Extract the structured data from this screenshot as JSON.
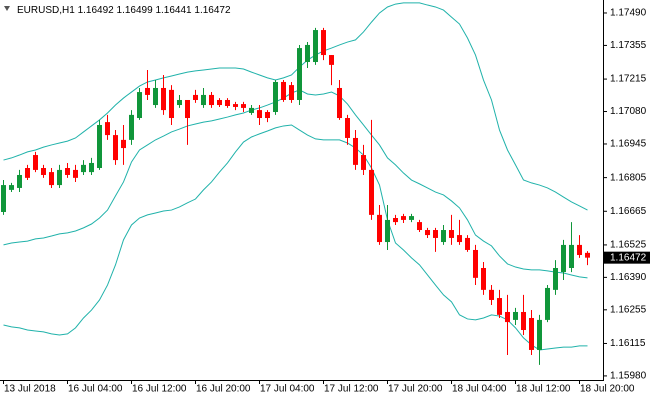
{
  "chart_data": {
    "type": "candlestick",
    "symbol": "EURUSD,H1",
    "ohlc": [
      1.16492,
      1.16499,
      1.16441,
      1.16472
    ],
    "last_price": 1.16472,
    "categories": [
      "13 Jul 2018",
      null,
      null,
      null,
      null,
      null,
      null,
      null,
      "16 Jul 04:00",
      null,
      null,
      null,
      null,
      null,
      null,
      null,
      "16 Jul 12:00",
      null,
      null,
      null,
      null,
      null,
      null,
      null,
      "16 Jul 20:00",
      null,
      null,
      null,
      null,
      null,
      null,
      null,
      "17 Jul 04:00",
      null,
      null,
      null,
      null,
      null,
      null,
      null,
      "17 Jul 12:00",
      null,
      null,
      null,
      null,
      null,
      null,
      null,
      "17 Jul 20:00",
      null,
      null,
      null,
      null,
      null,
      null,
      null,
      "18 Jul 04:00",
      null,
      null,
      null,
      null,
      null,
      null,
      null,
      "18 Jul 12:00",
      null,
      null,
      null,
      null,
      null,
      null,
      null,
      "18 Jul 20:00",
      null
    ],
    "open": [
      1.16662,
      1.16754,
      1.16762,
      1.16845,
      1.16899,
      1.16845,
      1.16828,
      1.16774,
      1.16845,
      1.16837,
      1.16828,
      1.16828,
      1.16845,
      1.17036,
      1.16982,
      1.16962,
      1.16962,
      1.17053,
      1.17178,
      1.17107,
      1.17178,
      1.1717,
      1.17107,
      1.17128,
      1.17149,
      1.17107,
      1.17149,
      1.17128,
      1.17128,
      1.17111,
      1.17111,
      1.17074,
      1.17086,
      1.17078,
      1.17078,
      1.17203,
      1.1719,
      1.17128,
      1.17286,
      1.17286,
      1.17419,
      1.17315,
      1.17178,
      1.17053,
      1.1697,
      1.16899,
      1.16837,
      1.1665,
      1.16537,
      1.16637,
      1.16645,
      1.16629,
      1.1662,
      1.16587,
      1.16587,
      1.16537,
      1.16587,
      1.16566,
      1.16554,
      1.16504,
      1.16429,
      1.16338,
      1.16304,
      1.16246,
      1.16213,
      1.16246,
      1.16221,
      1.16088,
      1.16213,
      1.16338,
      1.16412,
      1.16429,
      1.16525,
      1.16492
    ],
    "high": [
      1.16795,
      1.16783,
      1.16837,
      1.16858,
      1.16912,
      1.16858,
      1.16845,
      1.16858,
      1.16866,
      1.16858,
      1.16878,
      1.16887,
      1.17045,
      1.17066,
      1.17003,
      1.17024,
      1.17086,
      1.17178,
      1.17253,
      1.17211,
      1.17232,
      1.1719,
      1.17149,
      1.17128,
      1.1717,
      1.17178,
      1.17161,
      1.17136,
      1.17136,
      1.1712,
      1.1712,
      1.17107,
      1.17107,
      1.17086,
      1.17211,
      1.17211,
      1.17203,
      1.17357,
      1.17369,
      1.17428,
      1.17428,
      1.17315,
      1.17211,
      1.17066,
      1.17003,
      1.16941,
      1.17045,
      1.16691,
      1.16691,
      1.1665,
      1.16654,
      1.16654,
      1.16629,
      1.16596,
      1.16596,
      1.16608,
      1.1665,
      1.16629,
      1.16566,
      1.16525,
      1.16454,
      1.16358,
      1.16338,
      1.16317,
      1.16263,
      1.16317,
      1.16254,
      1.16234,
      1.16358,
      1.16462,
      1.16546,
      1.1662,
      1.16566,
      1.16499
    ],
    "low": [
      1.1665,
      1.16745,
      1.16745,
      1.16795,
      1.16828,
      1.16804,
      1.16762,
      1.16762,
      1.16804,
      1.16787,
      1.16816,
      1.16816,
      1.16837,
      1.16962,
      1.16858,
      1.16858,
      1.16941,
      1.17045,
      1.17128,
      1.17095,
      1.17066,
      1.17024,
      1.17095,
      1.16941,
      1.17116,
      1.17095,
      1.17095,
      1.17099,
      1.17095,
      1.17086,
      1.17078,
      1.17066,
      1.17024,
      1.17036,
      1.17066,
      1.1712,
      1.17116,
      1.17107,
      1.17261,
      1.17274,
      1.17294,
      1.1719,
      1.17045,
      1.16941,
      1.16837,
      1.16816,
      1.16629,
      1.16525,
      1.16504,
      1.16608,
      1.16616,
      1.1662,
      1.16579,
      1.16554,
      1.16496,
      1.16525,
      1.16525,
      1.16525,
      1.16496,
      1.16358,
      1.16317,
      1.16275,
      1.16221,
      1.16067,
      1.16192,
      1.1615,
      1.16067,
      1.16026,
      1.16204,
      1.16317,
      1.16379,
      1.16412,
      1.16471,
      1.16441
    ],
    "close": [
      1.16774,
      1.16774,
      1.16816,
      1.16804,
      1.16837,
      1.16816,
      1.16774,
      1.16837,
      1.16816,
      1.16804,
      1.16858,
      1.16866,
      1.17024,
      1.16982,
      1.16878,
      1.16928,
      1.17066,
      1.17161,
      1.17149,
      1.17178,
      1.17086,
      1.17053,
      1.17128,
      1.17053,
      1.17128,
      1.17149,
      1.17107,
      1.17107,
      1.17103,
      1.17099,
      1.17095,
      1.17095,
      1.17053,
      1.17053,
      1.17203,
      1.17128,
      1.17128,
      1.17344,
      1.17357,
      1.17419,
      1.17315,
      1.17274,
      1.17053,
      1.1697,
      1.16858,
      1.16837,
      1.1665,
      1.16537,
      1.16629,
      1.1662,
      1.16629,
      1.16645,
      1.16587,
      1.16566,
      1.16554,
      1.16587,
      1.16554,
      1.16537,
      1.16504,
      1.16388,
      1.16338,
      1.16296,
      1.16234,
      1.16204,
      1.16246,
      1.16171,
      1.16088,
      1.16213,
      1.16346,
      1.16429,
      1.16525,
      1.16525,
      1.16483,
      1.16472
    ],
    "bands": {
      "color": "#20b2aa",
      "upper": [
        1.16878,
        1.16887,
        1.16899,
        1.16912,
        1.1692,
        1.16932,
        1.16941,
        1.16949,
        1.16957,
        1.1697,
        1.16995,
        1.1702,
        1.17045,
        1.17074,
        1.17107,
        1.17136,
        1.17161,
        1.17186,
        1.17203,
        1.17211,
        1.1722,
        1.17228,
        1.17236,
        1.17244,
        1.17249,
        1.17253,
        1.17257,
        1.17261,
        1.17261,
        1.17261,
        1.17257,
        1.17244,
        1.17232,
        1.1722,
        1.17211,
        1.1722,
        1.17232,
        1.17265,
        1.17294,
        1.17315,
        1.17332,
        1.17344,
        1.17357,
        1.17369,
        1.17378,
        1.17411,
        1.17452,
        1.1749,
        1.17515,
        1.17527,
        1.17532,
        1.17532,
        1.17532,
        1.17523,
        1.17515,
        1.17502,
        1.17473,
        1.17444,
        1.17386,
        1.17315,
        1.17211,
        1.17128,
        1.17003,
        1.1692,
        1.16858,
        1.16795,
        1.16783,
        1.16774,
        1.16762,
        1.16745,
        1.16724,
        1.16704,
        1.16687,
        1.1667
      ],
      "middle": [
        1.16525,
        1.16533,
        1.16537,
        1.16541,
        1.1655,
        1.16554,
        1.16562,
        1.16571,
        1.16575,
        1.16583,
        1.16596,
        1.16612,
        1.16637,
        1.1667,
        1.16729,
        1.16787,
        1.1687,
        1.1692,
        1.16941,
        1.16962,
        1.16978,
        1.16995,
        1.17007,
        1.1702,
        1.17028,
        1.17036,
        1.17041,
        1.17049,
        1.17057,
        1.17066,
        1.17074,
        1.17086,
        1.17095,
        1.17107,
        1.1712,
        1.17136,
        1.17157,
        1.1717,
        1.17153,
        1.17149,
        1.17153,
        1.17161,
        1.17145,
        1.17111,
        1.17066,
        1.17024,
        1.16982,
        1.16941,
        1.16887,
        1.16858,
        1.16824,
        1.16795,
        1.16779,
        1.16762,
        1.16745,
        1.16733,
        1.16708,
        1.16679,
        1.16629,
        1.16566,
        1.16541,
        1.16521,
        1.16479,
        1.16446,
        1.16433,
        1.16425,
        1.16421,
        1.16421,
        1.16417,
        1.16412,
        1.16408,
        1.164,
        1.16392,
        1.16388
      ],
      "lower": [
        1.16192,
        1.16184,
        1.1618,
        1.16171,
        1.16167,
        1.16163,
        1.16155,
        1.1615,
        1.16155,
        1.1618,
        1.16221,
        1.16254,
        1.16296,
        1.16358,
        1.16442,
        1.16546,
        1.16608,
        1.16637,
        1.1665,
        1.16658,
        1.16666,
        1.1667,
        1.16683,
        1.167,
        1.16716,
        1.16754,
        1.16787,
        1.16828,
        1.16866,
        1.16912,
        1.16953,
        1.16974,
        1.16987,
        1.16999,
        1.17012,
        1.1702,
        1.17024,
        1.17003,
        1.16982,
        1.16966,
        1.16962,
        1.16962,
        1.16962,
        1.16949,
        1.16928,
        1.16899,
        1.16845,
        1.16774,
        1.16629,
        1.16533,
        1.16504,
        1.16471,
        1.16442,
        1.164,
        1.16358,
        1.16317,
        1.16288,
        1.16234,
        1.16217,
        1.16213,
        1.16221,
        1.16234,
        1.16229,
        1.16213,
        1.1618,
        1.16138,
        1.16109,
        1.16088,
        1.16092,
        1.16096,
        1.161,
        1.161,
        1.16105,
        1.16105
      ]
    },
    "up_color": "#10963a",
    "down_color": "#ff0000",
    "ylim": [
      1.15963,
      1.17544
    ],
    "yticks": [
      {
        "value": 1.1749,
        "label": "1.17490"
      },
      {
        "value": 1.17355,
        "label": "1.17355"
      },
      {
        "value": 1.17215,
        "label": "1.17215"
      },
      {
        "value": 1.1708,
        "label": "1.17080"
      },
      {
        "value": 1.16945,
        "label": "1.16945"
      },
      {
        "value": 1.16805,
        "label": "1.16805"
      },
      {
        "value": 1.16665,
        "label": "1.16665"
      },
      {
        "value": 1.16525,
        "label": "1.16525"
      },
      {
        "value": 1.1639,
        "label": "1.16390"
      },
      {
        "value": 1.16255,
        "label": "1.16255"
      },
      {
        "value": 1.16115,
        "label": "1.16115"
      },
      {
        "value": 1.1598,
        "label": "1.15980"
      }
    ],
    "grid": false
  }
}
